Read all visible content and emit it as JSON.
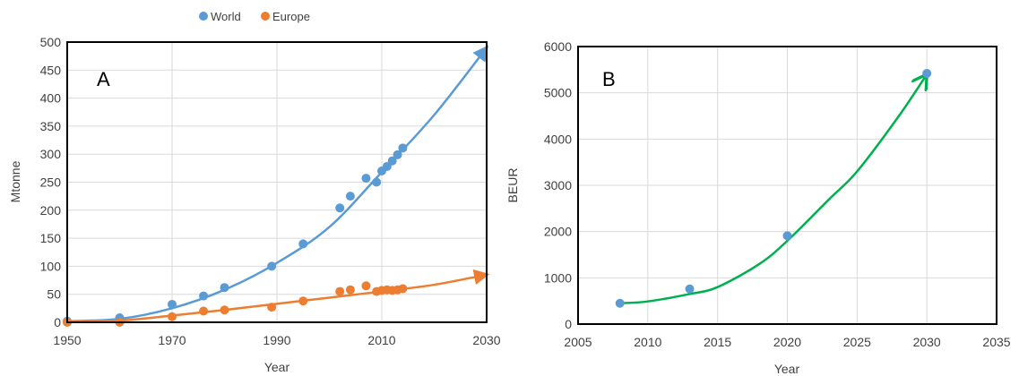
{
  "chart_data": [
    {
      "panel_label": "A",
      "type": "scatter",
      "xlabel": "Year",
      "ylabel": "Mtonne",
      "xlim": [
        1950,
        2030
      ],
      "ylim": [
        0,
        500
      ],
      "xticks": [
        1950,
        1970,
        1990,
        2010,
        2030
      ],
      "yticks": [
        0,
        50,
        100,
        150,
        200,
        250,
        300,
        350,
        400,
        450,
        500
      ],
      "grid": true,
      "legend": "top",
      "series": [
        {
          "name": "World",
          "color": "#5B9BD5",
          "points": [
            [
              1950,
              2
            ],
            [
              1960,
              8
            ],
            [
              1970,
              32
            ],
            [
              1976,
              47
            ],
            [
              1980,
              62
            ],
            [
              1989,
              100
            ],
            [
              1995,
              140
            ],
            [
              2002,
              204
            ],
            [
              2004,
              225
            ],
            [
              2007,
              257
            ],
            [
              2009,
              250
            ],
            [
              2010,
              270
            ],
            [
              2011,
              278
            ],
            [
              2012,
              288
            ],
            [
              2013,
              299
            ],
            [
              2014,
              311
            ]
          ],
          "trend": [
            [
              1950,
              2
            ],
            [
              1960,
              6
            ],
            [
              1970,
              25
            ],
            [
              1980,
              58
            ],
            [
              1990,
              106
            ],
            [
              2000,
              170
            ],
            [
              2010,
              268
            ],
            [
              2020,
              370
            ],
            [
              2030,
              490
            ]
          ]
        },
        {
          "name": "Europe",
          "color": "#ED7D31",
          "points": [
            [
              1950,
              0
            ],
            [
              1960,
              0
            ],
            [
              1970,
              10
            ],
            [
              1976,
              20
            ],
            [
              1980,
              22
            ],
            [
              1989,
              27
            ],
            [
              1995,
              38
            ],
            [
              2002,
              55
            ],
            [
              2004,
              58
            ],
            [
              2007,
              65
            ],
            [
              2009,
              55
            ],
            [
              2010,
              57
            ],
            [
              2011,
              58
            ],
            [
              2012,
              57
            ],
            [
              2013,
              58
            ],
            [
              2014,
              60
            ]
          ],
          "trend": [
            [
              1950,
              1
            ],
            [
              1960,
              3
            ],
            [
              1970,
              12
            ],
            [
              1980,
              22
            ],
            [
              1990,
              33
            ],
            [
              2000,
              44
            ],
            [
              2010,
              55
            ],
            [
              2020,
              67
            ],
            [
              2030,
              85
            ]
          ]
        }
      ]
    },
    {
      "panel_label": "B",
      "type": "scatter",
      "xlabel": "Year",
      "ylabel": "BEUR",
      "xlim": [
        2005,
        2035
      ],
      "ylim": [
        0,
        6000
      ],
      "xticks": [
        2005,
        2010,
        2015,
        2020,
        2025,
        2030,
        2035
      ],
      "yticks": [
        0,
        1000,
        2000,
        3000,
        4000,
        5000,
        6000
      ],
      "grid": true,
      "series": [
        {
          "color": "#5B9BD5",
          "points": [
            [
              2008,
              450
            ],
            [
              2013,
              760
            ],
            [
              2020,
              1910
            ],
            [
              2030,
              5420
            ]
          ],
          "trend_color": "#00B050",
          "trend": [
            [
              2008,
              450
            ],
            [
              2010,
              490
            ],
            [
              2013,
              650
            ],
            [
              2015,
              800
            ],
            [
              2018,
              1300
            ],
            [
              2020,
              1800
            ],
            [
              2023,
              2700
            ],
            [
              2025,
              3300
            ],
            [
              2028,
              4500
            ],
            [
              2030,
              5400
            ]
          ]
        }
      ]
    }
  ]
}
